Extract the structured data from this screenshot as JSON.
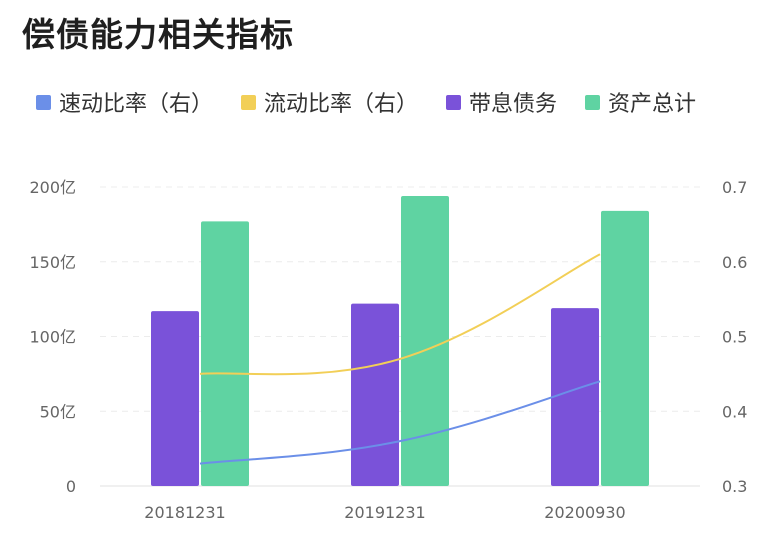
{
  "chart_data": {
    "type": "bar+line",
    "title": "偿债能力相关指标",
    "categories": [
      "20181231",
      "20191231",
      "20200930"
    ],
    "series": [
      {
        "name": "速动比率（右）",
        "kind": "line",
        "axis": "right",
        "color": "#6b8fe8",
        "values": [
          0.33,
          0.36,
          0.44
        ]
      },
      {
        "name": "流动比率（右）",
        "kind": "line",
        "axis": "right",
        "color": "#f2cf57",
        "values": [
          0.45,
          0.47,
          0.61
        ]
      },
      {
        "name": "带息债务",
        "kind": "bar",
        "axis": "left",
        "color": "#7a52d9",
        "values": [
          117,
          122,
          119
        ]
      },
      {
        "name": "资产总计",
        "kind": "bar",
        "axis": "left",
        "color": "#5fd3a2",
        "values": [
          177,
          194,
          184
        ]
      }
    ],
    "left_axis": {
      "min": 0,
      "max": 200,
      "ticks": [
        0,
        50,
        100,
        150,
        200
      ],
      "tick_labels": [
        "0",
        "50亿",
        "100亿",
        "150亿",
        "200亿"
      ]
    },
    "right_axis": {
      "min": 0.3,
      "max": 0.7,
      "ticks": [
        0.3,
        0.4,
        0.5,
        0.6,
        0.7
      ],
      "tick_labels": [
        "0.3",
        "0.4",
        "0.5",
        "0.6",
        "0.7"
      ]
    },
    "grid": true,
    "legend_position": "top"
  }
}
